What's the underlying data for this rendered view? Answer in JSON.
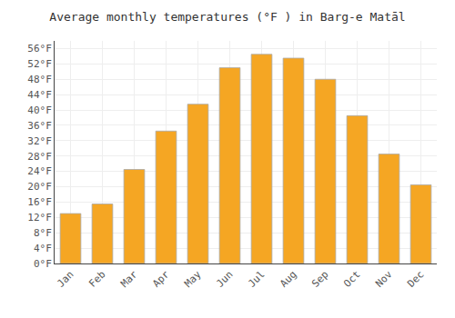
{
  "chart_data": {
    "type": "bar",
    "title": "Average monthly temperatures (°F ) in Barg-e Matāl",
    "categories": [
      "Jan",
      "Feb",
      "Mar",
      "Apr",
      "May",
      "Jun",
      "Jul",
      "Aug",
      "Sep",
      "Oct",
      "Nov",
      "Dec"
    ],
    "values": [
      13,
      15.5,
      24.5,
      34.5,
      41.5,
      51,
      54.5,
      53.5,
      48,
      38.5,
      28.5,
      20.5
    ],
    "color": "#F5A623",
    "ylim": [
      0,
      58
    ],
    "yticks": [
      {
        "value": 0,
        "label": "0°F"
      },
      {
        "value": 4,
        "label": "4°F"
      },
      {
        "value": 8,
        "label": "8°F"
      },
      {
        "value": 12,
        "label": "12°F"
      },
      {
        "value": 16,
        "label": "16°F"
      },
      {
        "value": 20,
        "label": "20°F"
      },
      {
        "value": 24,
        "label": "24°F"
      },
      {
        "value": 28,
        "label": "28°F"
      },
      {
        "value": 32,
        "label": "32°F"
      },
      {
        "value": 36,
        "label": "36°F"
      },
      {
        "value": 40,
        "label": "40°F"
      },
      {
        "value": 44,
        "label": "44°F"
      },
      {
        "value": 48,
        "label": "48°F"
      },
      {
        "value": 52,
        "label": "52°F"
      },
      {
        "value": 56,
        "label": "56°F"
      }
    ],
    "grid": true
  }
}
